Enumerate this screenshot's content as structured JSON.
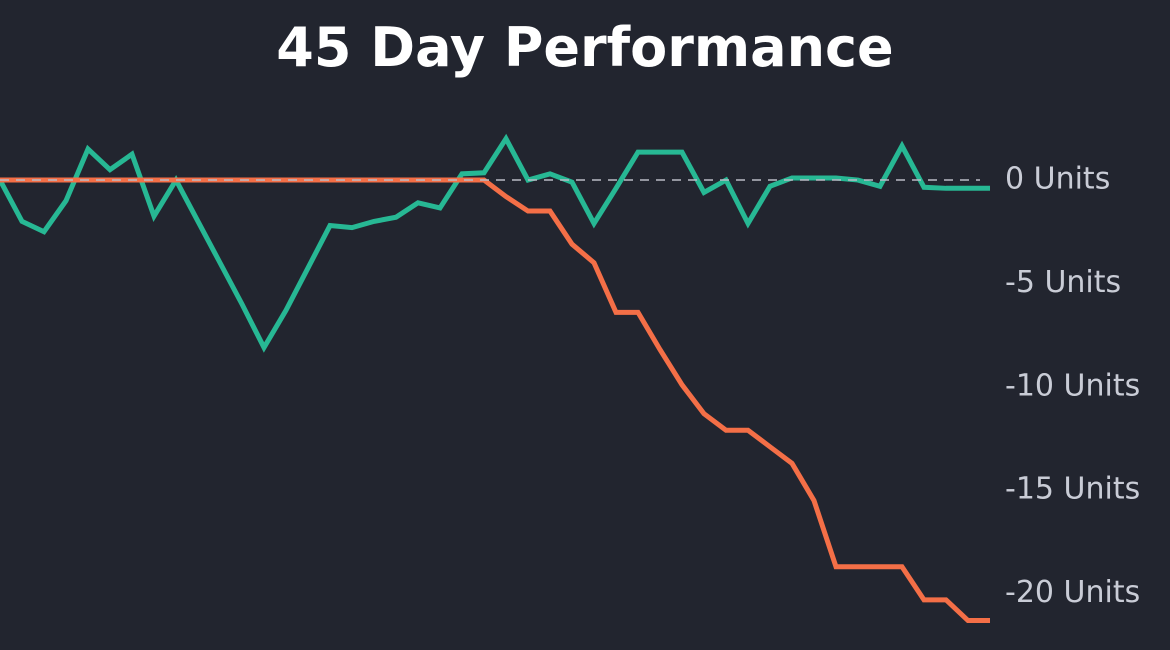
{
  "chart_data": {
    "type": "line",
    "title": "45 Day Performance",
    "series": [
      {
        "color": "#27b894",
        "values": [
          0,
          -2.0,
          -2.5,
          -1.0,
          1.5,
          0.5,
          1.25,
          -1.75,
          0,
          -2.0,
          -4.0,
          -6.0,
          -8.1,
          -6.3,
          -4.25,
          -2.2,
          -2.3,
          -2.0,
          -1.8,
          -1.1,
          -1.35,
          0.3,
          0.35,
          2.0,
          0,
          0.3,
          -0.1,
          -2.1,
          -0.4,
          1.35,
          1.35,
          1.35,
          -0.6,
          0,
          -2.1,
          -0.3,
          0.1,
          0.1,
          0.1,
          0,
          -0.3,
          1.65,
          -0.35,
          -0.4,
          -0.4,
          -0.4
        ]
      },
      {
        "color": "#f46f47",
        "values": [
          0,
          0,
          0,
          0,
          0,
          0,
          0,
          0,
          0,
          0,
          0,
          0,
          0,
          0,
          0,
          0,
          0,
          0,
          0,
          0,
          0,
          0,
          0,
          -0.8,
          -1.5,
          -1.5,
          -3.1,
          -4.0,
          -6.4,
          -6.4,
          -8.2,
          -9.9,
          -11.3,
          -12.1,
          -12.1,
          -12.9,
          -13.7,
          -15.5,
          -18.7,
          -18.7,
          -18.7,
          -18.7,
          -20.3,
          -20.3,
          -21.3,
          -21.3
        ]
      }
    ],
    "ylim": [
      -22,
      3
    ],
    "yticks": [
      {
        "value": 0,
        "label": "0 Units"
      },
      {
        "value": -5,
        "label": "-5 Units"
      },
      {
        "value": -10,
        "label": "-10 Units"
      },
      {
        "value": -15,
        "label": "-15 Units"
      },
      {
        "value": -20,
        "label": "-20 Units"
      }
    ]
  }
}
